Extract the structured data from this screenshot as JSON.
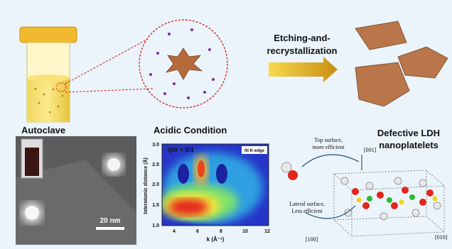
{
  "top": {
    "autoclave": "Autoclave",
    "acidic": "Acidic Condition",
    "process": [
      "Etching-and-",
      "recrystallization"
    ],
    "product": [
      "Defective LDH",
      "nanoplatelets"
    ]
  },
  "tem": {
    "scale": "20 nm"
  },
  "wavelet": {
    "ratio": "η/σ = 5/1",
    "edge": "Ni K-edge",
    "ylabel": "Interatomic distance (Å)",
    "xlabel": "k (Å⁻¹)",
    "yticks": [
      "1.0",
      "1.5",
      "2.0",
      "2.5",
      "3.0"
    ],
    "xticks": [
      "4",
      "6",
      "8",
      "10",
      "12"
    ]
  },
  "structure": {
    "top": [
      "Top surface,",
      "more efficient"
    ],
    "lateral": [
      "Lateral surface,",
      "Less efficient"
    ],
    "axes": [
      "[001]",
      "[100]",
      "[010]"
    ]
  }
}
